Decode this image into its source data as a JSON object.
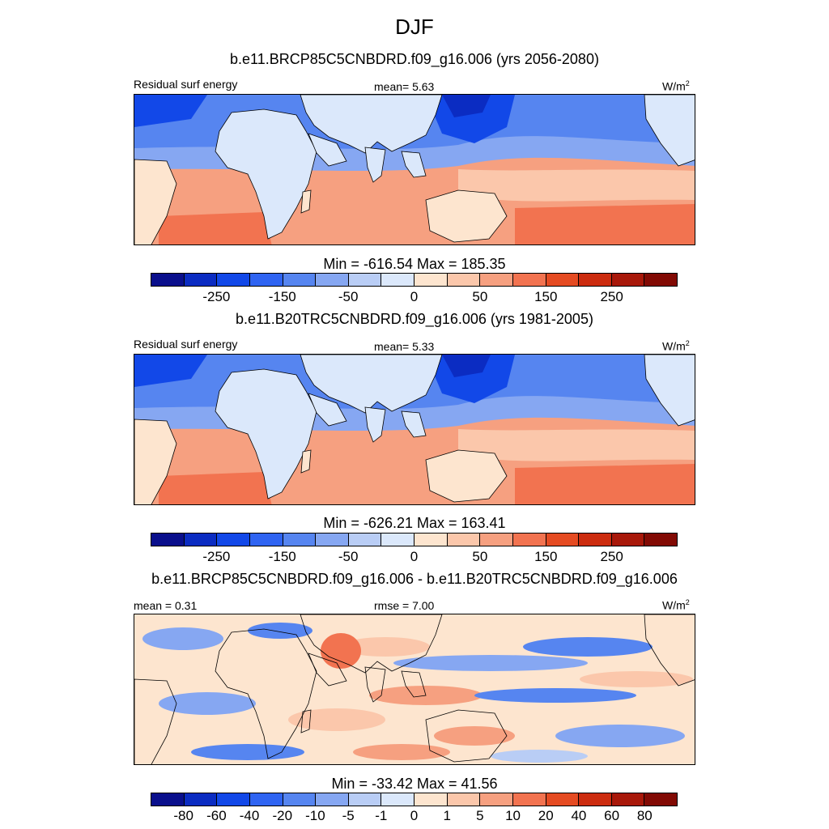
{
  "title": "DJF",
  "panels": [
    {
      "title": "b.e11.BRCP85C5CNBDRD.f09_g16.006 (yrs 2056-2080)",
      "left_label": "Residual surf energy",
      "center_label": "mean=   5.63",
      "units": "W/m",
      "units_sup": "2",
      "stats": "Min = -616.54 Max = 185.35",
      "tick_labels": [
        "-250",
        "-150",
        "-50",
        "0",
        "50",
        "150",
        "250"
      ]
    },
    {
      "title": "b.e11.B20TRC5CNBDRD.f09_g16.006 (yrs 1981-2005)",
      "left_label": "Residual surf energy",
      "center_label": "mean=   5.33",
      "units": "W/m",
      "units_sup": "2",
      "stats": "Min = -626.21 Max = 163.41",
      "tick_labels": [
        "-250",
        "-150",
        "-50",
        "0",
        "50",
        "150",
        "250"
      ]
    },
    {
      "title": "b.e11.BRCP85C5CNBDRD.f09_g16.006 - b.e11.B20TRC5CNBDRD.f09_g16.006",
      "left_label": "mean =   0.31",
      "center_label": "rmse =   7.00",
      "units": "W/m",
      "units_sup": "2",
      "stats": "Min = -33.42 Max =  41.56",
      "tick_labels": [
        "-80",
        "-60",
        "-40",
        "-20",
        "-10",
        "-5",
        "-1",
        "0",
        "1",
        "5",
        "10",
        "20",
        "40",
        "60",
        "80"
      ]
    }
  ],
  "colorbar_colors": [
    "#0a0f8c",
    "#0b2cc2",
    "#1248e8",
    "#2f64f2",
    "#5685f0",
    "#86a7f2",
    "#b9cdf5",
    "#dbe8fb",
    "#fde5cf",
    "#fbc7ab",
    "#f6a080",
    "#f27350",
    "#e54b22",
    "#cc2c0f",
    "#a8180a",
    "#820a04"
  ],
  "map_colors": {
    "land": "#dbe8fb",
    "land_warm": "#fde5cf",
    "ocean_north": "#5685f0",
    "ocean_north_dark": "#1248e8",
    "ocean_north_light": "#86a7f2",
    "ocean_south": "#f6a080",
    "ocean_south_light": "#fbc7ab",
    "ocean_south_dark": "#f27350"
  }
}
